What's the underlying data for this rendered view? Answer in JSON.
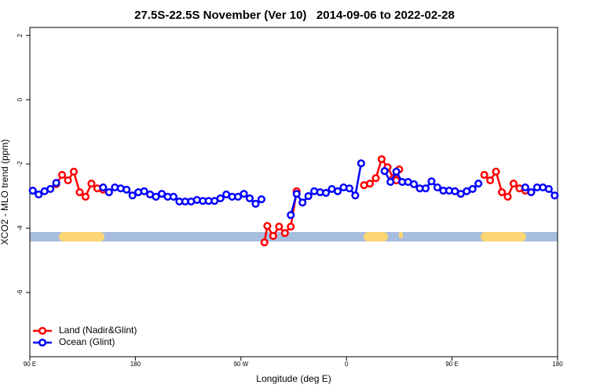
{
  "chart_data": {
    "type": "line",
    "title": "27.5S-22.5S November (Ver 10)   2014-09-06 to 2022-02-28",
    "x_label": "Longitude (deg E)",
    "y_label": "XCO2 - MLO trend (ppm)",
    "xlim": [
      90,
      540
    ],
    "xticks": [
      {
        "value": 90,
        "label": "90 E"
      },
      180,
      {
        "value": 270,
        "label": "90 W"
      },
      {
        "value": 360,
        "label": "0"
      },
      {
        "value": 450,
        "label": "90 E"
      },
      {
        "value": 540,
        "label": "180"
      }
    ],
    "ylim": [
      -8,
      2.25
    ],
    "yticks": [
      -6,
      -4,
      -2,
      0,
      2
    ],
    "legend": "bottom-left",
    "series": [
      {
        "name": "Land (Nadir&Glint)",
        "color": "#ff0000",
        "x": [
          112.5,
          117.5,
          122.5,
          127.5,
          132.5,
          137.5,
          142.5,
          147.5,
          152.5,
          220,
          290,
          292.5,
          297.5,
          302.5,
          307.5,
          312.5,
          317.5,
          345,
          375,
          380,
          385,
          390,
          395,
          400,
          402.5,
          405,
          440,
          477.5,
          482.5,
          487.5,
          492.5,
          497.5,
          502.5,
          507.5,
          512.5
        ],
        "values": [
          -2.63,
          -2.34,
          -2.51,
          -2.24,
          -2.88,
          -3.02,
          -2.61,
          -2.76,
          -2.8,
          null,
          -4.44,
          -3.93,
          -4.24,
          -3.95,
          -4.15,
          -3.95,
          -2.85,
          null,
          -2.66,
          -2.61,
          -2.44,
          -1.85,
          -2.1,
          -2.44,
          -2.51,
          -2.17,
          null,
          -2.34,
          -2.51,
          -2.24,
          -2.88,
          -3.02,
          -2.61,
          -2.76,
          -2.83
        ]
      },
      {
        "name": "Ocean (Glint)",
        "color": "#0000ff",
        "x": [
          92.5,
          97.5,
          102.5,
          107.5,
          112.5,
          130,
          152.5,
          157.5,
          162.5,
          167.5,
          172.5,
          177.5,
          182.5,
          187.5,
          192.5,
          197.5,
          202.5,
          207.5,
          212.5,
          217.5,
          222.5,
          227.5,
          232.5,
          237.5,
          242.5,
          247.5,
          252.5,
          257.5,
          262.5,
          267.5,
          272.5,
          277.5,
          282.5,
          287.5,
          300,
          312.5,
          317.5,
          322.5,
          327.5,
          332.5,
          337.5,
          342.5,
          347.5,
          352.5,
          357.5,
          362.5,
          367.5,
          372.5,
          385,
          392.5,
          397.5,
          402.5,
          407.5,
          412.5,
          417.5,
          422.5,
          427.5,
          432.5,
          437.5,
          442.5,
          447.5,
          452.5,
          457.5,
          462.5,
          467.5,
          472.5,
          490,
          512.5,
          517.5,
          522.5,
          527.5,
          532.5,
          537.5
        ],
        "values": [
          -2.83,
          -2.95,
          -2.85,
          -2.78,
          -2.59,
          null,
          -2.73,
          -2.88,
          -2.73,
          -2.76,
          -2.8,
          -2.98,
          -2.88,
          -2.85,
          -2.95,
          -3.02,
          -2.93,
          -3.02,
          -3.02,
          -3.17,
          -3.17,
          -3.17,
          -3.12,
          -3.15,
          -3.15,
          -3.15,
          -3.07,
          -2.95,
          -3.02,
          -3.02,
          -2.93,
          -3.07,
          -3.24,
          -3.1,
          null,
          -3.59,
          -2.93,
          -3.2,
          -3.0,
          -2.85,
          -2.88,
          -2.9,
          -2.78,
          -2.85,
          -2.73,
          -2.76,
          -2.98,
          -1.98,
          null,
          -2.22,
          -2.56,
          -2.24,
          -2.56,
          -2.56,
          -2.63,
          -2.76,
          -2.76,
          -2.54,
          -2.73,
          -2.83,
          -2.83,
          -2.85,
          -2.93,
          -2.85,
          -2.78,
          -2.61,
          null,
          -2.73,
          -2.88,
          -2.73,
          -2.73,
          -2.78,
          -2.98
        ]
      }
    ]
  }
}
